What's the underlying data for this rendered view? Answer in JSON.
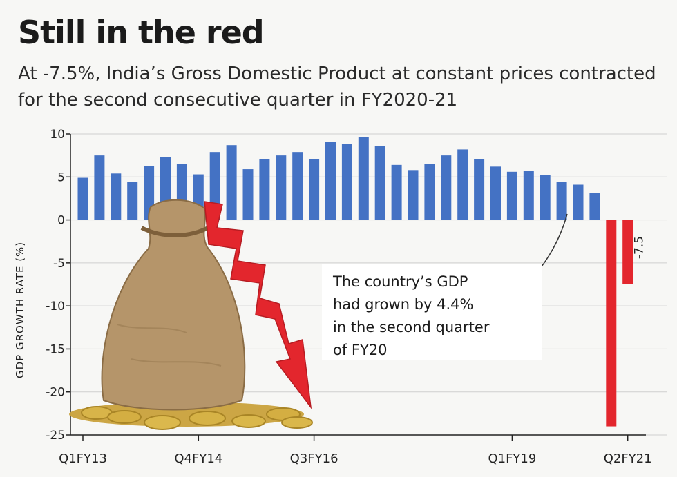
{
  "title": "Still in the red",
  "subtitle": "At -7.5%, India’s Gross Domestic Product at constant prices contracted for the second consecutive quarter in FY2020-21",
  "callout": "The country’s GDP\nhad grown by 4.4%\nin the second quarter\nof FY20",
  "colors": {
    "positive": "#4472c4",
    "negative": "#e3262d",
    "grid": "#cfcfcf",
    "arrow": "#e3262d"
  },
  "chart_data": {
    "type": "bar",
    "ylabel": "GDP GROWTH RATE (%)",
    "ylim": [
      -25,
      10
    ],
    "yticks": [
      10,
      5,
      0,
      -5,
      -10,
      -15,
      -20,
      -25
    ],
    "grid": true,
    "x_tick_labels": [
      {
        "index": 0,
        "label": "Q1FY13"
      },
      {
        "index": 7,
        "label": "Q4FY14"
      },
      {
        "index": 14,
        "label": "Q3FY16"
      },
      {
        "index": 26,
        "label": "Q1FY19"
      },
      {
        "index": 33,
        "label": "Q2FY21"
      }
    ],
    "values": [
      4.9,
      7.5,
      5.4,
      4.4,
      6.3,
      7.3,
      6.5,
      5.3,
      7.9,
      8.7,
      5.9,
      7.1,
      7.5,
      7.9,
      7.1,
      9.1,
      8.8,
      9.6,
      8.6,
      6.4,
      5.8,
      6.5,
      7.5,
      8.2,
      7.1,
      6.2,
      5.6,
      5.7,
      5.2,
      4.4,
      4.1,
      3.1,
      -24.0,
      -7.5
    ],
    "annotation": {
      "index": 33,
      "label": "-7.5"
    }
  }
}
